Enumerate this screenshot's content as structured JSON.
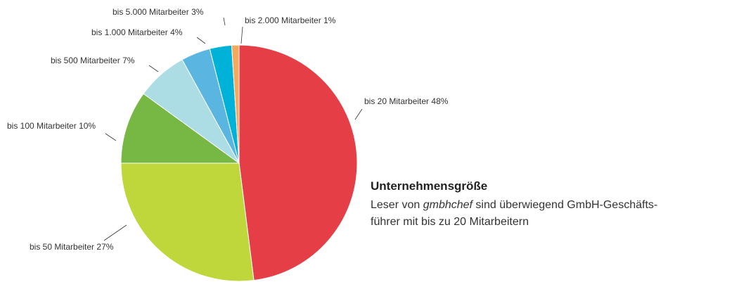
{
  "chart_data": {
    "type": "pie",
    "title": "Unternehmensgröße",
    "subtitle": [
      "Leser von ",
      "gmbhchef",
      " sind überwiegend GmbH-Geschäfts-",
      "führer mit bis zu 20 Mitarbeitern"
    ],
    "categories": [
      "bis 20 Mitarbeiter",
      "bis 50 Mitarbeiter",
      "bis 100 Mitarbeiter",
      "bis 500 Mitarbeiter",
      "bis 1.000 Mitarbeiter",
      "bis 5.000 Mitarbeiter",
      "bis 2.000 Mitarbeiter"
    ],
    "values": [
      48,
      27,
      10,
      7,
      4,
      3,
      1
    ],
    "value_labels": [
      "48%",
      "27%",
      "10%",
      "7%",
      "4%",
      "3%",
      "1%"
    ],
    "colors": [
      "#e63e46",
      "#bfd73b",
      "#76b843",
      "#acdce4",
      "#5ab6e0",
      "#00b1d8",
      "#f5a95b"
    ]
  }
}
